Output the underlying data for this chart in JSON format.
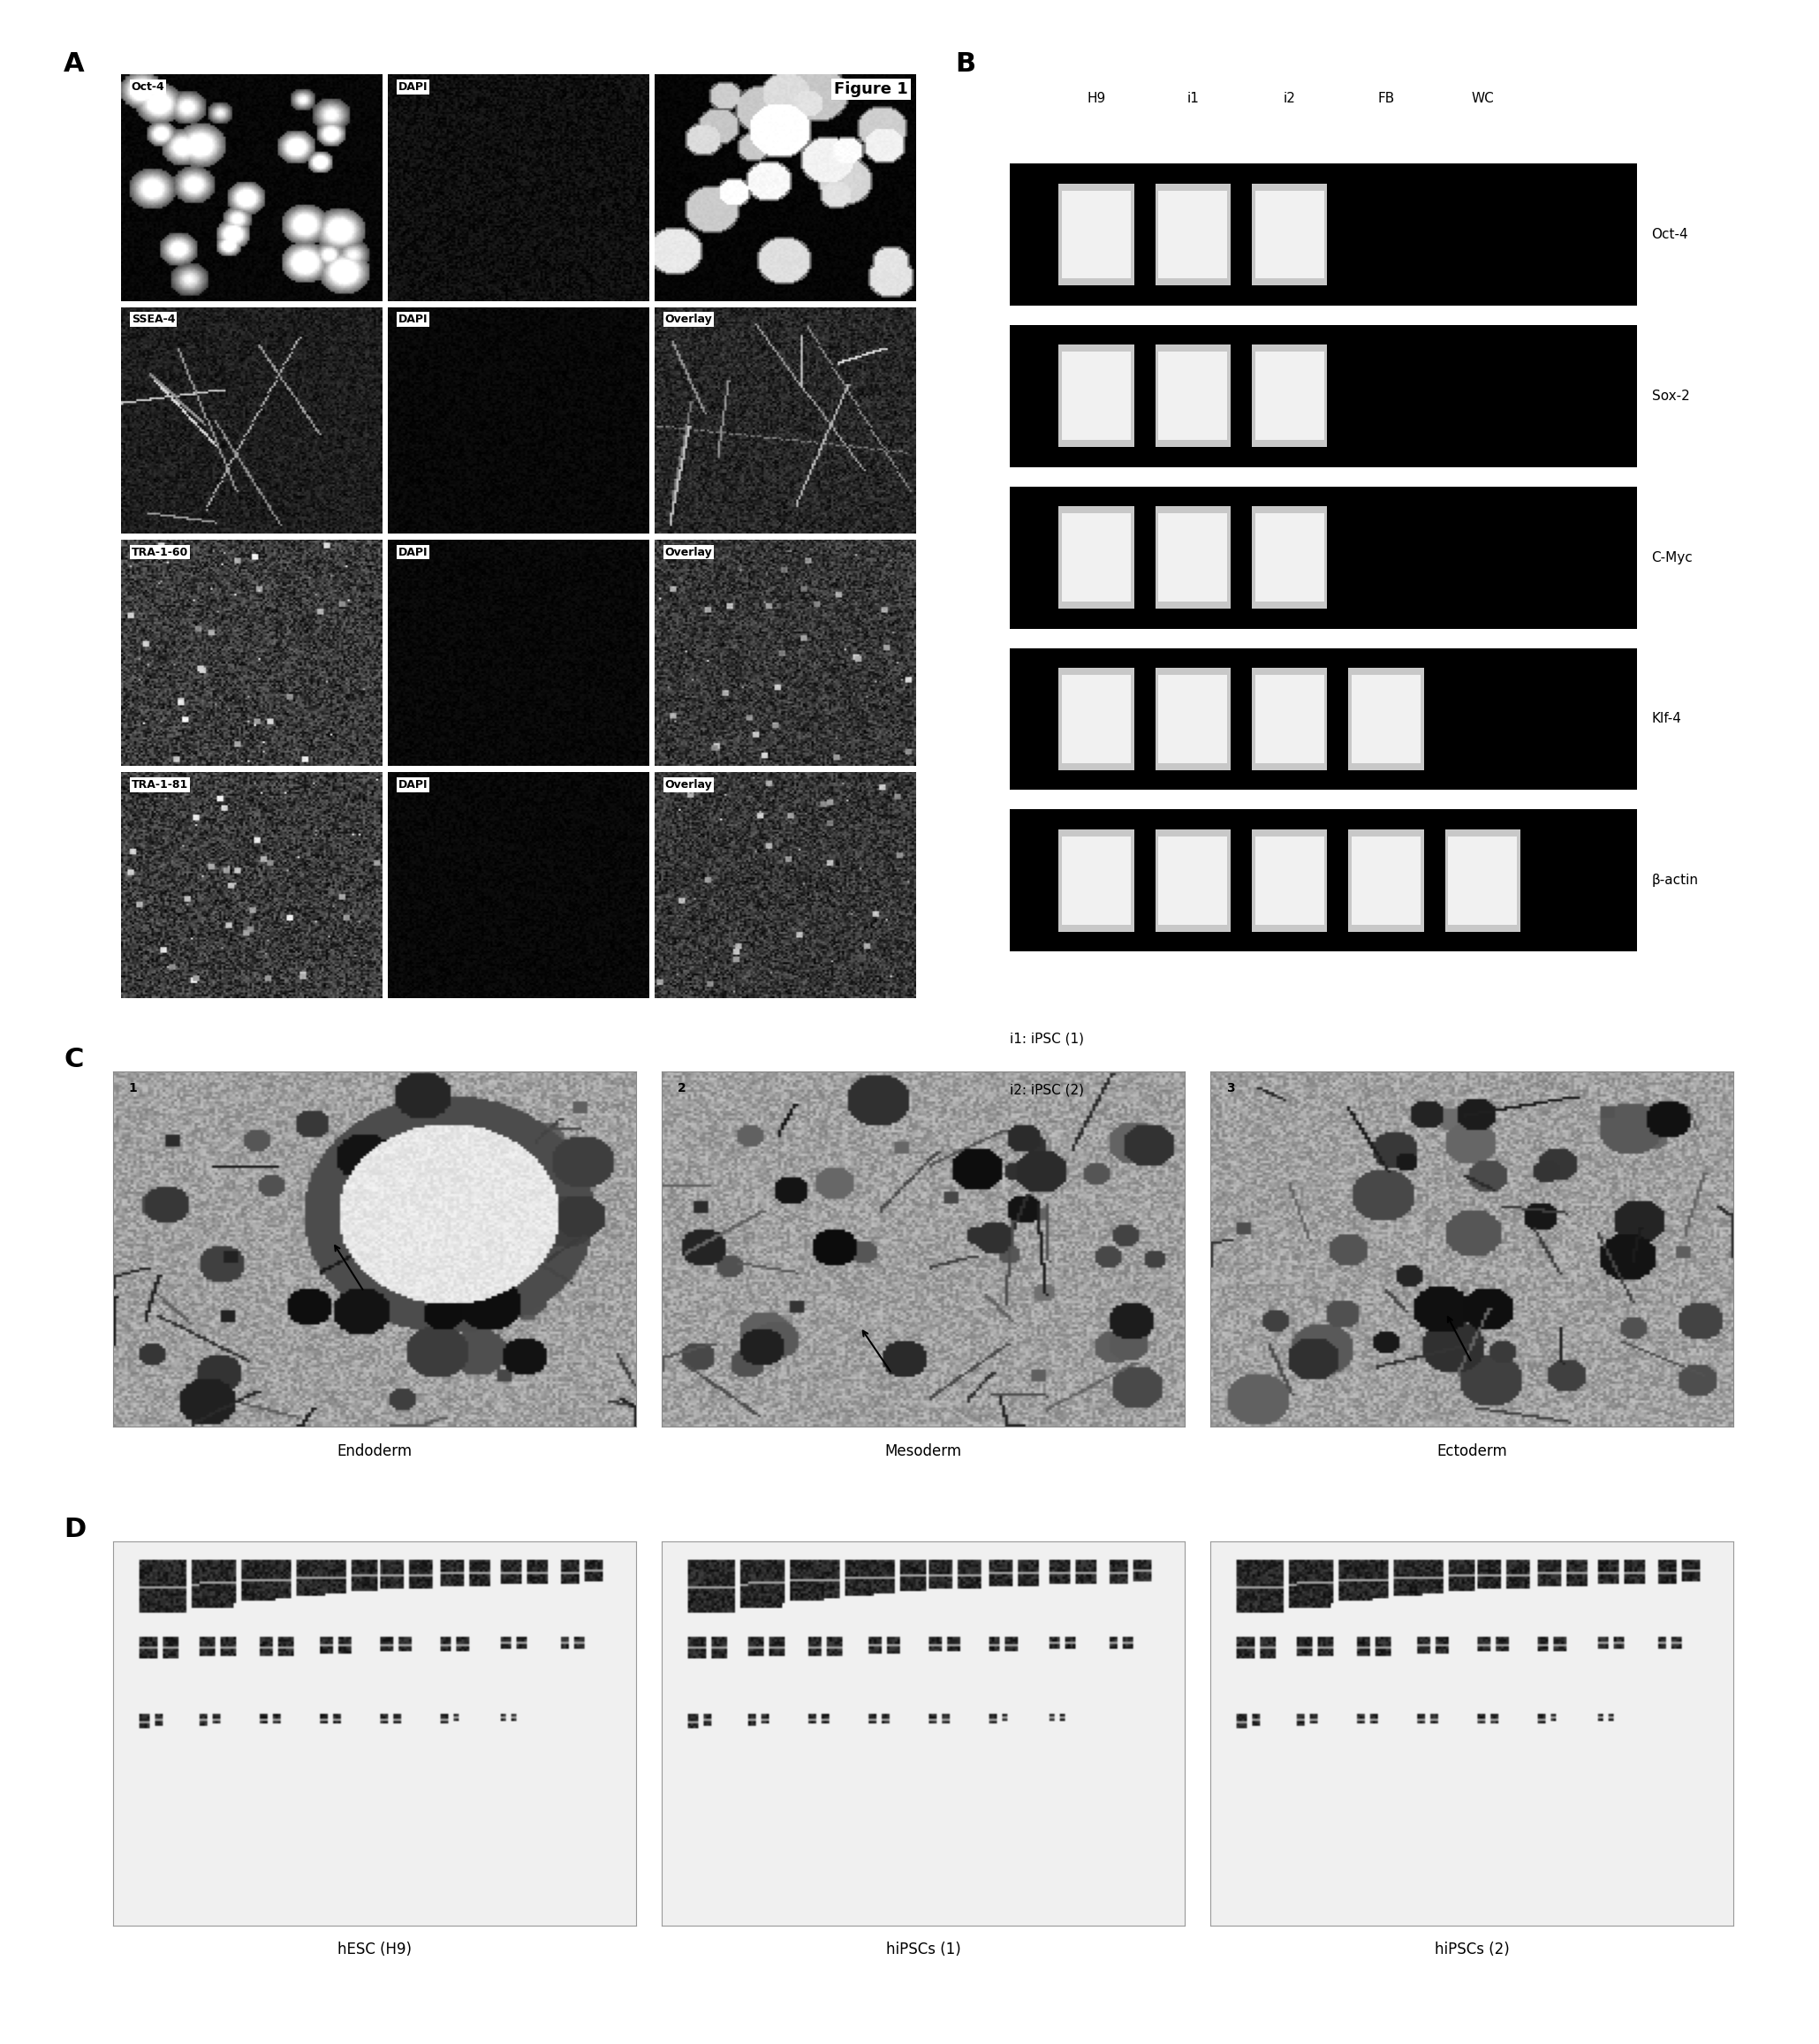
{
  "panel_labels": [
    "A",
    "B",
    "C",
    "D"
  ],
  "panel_A_labels": [
    [
      "Oct-4",
      "DAPI",
      "Figure 1"
    ],
    [
      "SSEA-4",
      "DAPI",
      "Overlay"
    ],
    [
      "TRA-1-60",
      "DAPI",
      "Overlay"
    ],
    [
      "TRA-1-81",
      "DAPI",
      "Overlay"
    ]
  ],
  "panel_B_columns": [
    "H9",
    "i1",
    "i2",
    "FB",
    "WC"
  ],
  "panel_B_rows": [
    "Oct-4",
    "Sox-2",
    "C-Myc",
    "Klf-4",
    "β-actin"
  ],
  "panel_B_bands": [
    [
      1,
      1,
      1,
      0,
      0
    ],
    [
      1,
      1,
      1,
      0,
      0
    ],
    [
      1,
      1,
      1,
      0,
      0
    ],
    [
      1,
      1,
      1,
      1,
      0
    ],
    [
      1,
      1,
      1,
      1,
      1
    ]
  ],
  "panel_B_note": [
    "i1: iPSC (1)",
    "i2: iPSC (2)"
  ],
  "panel_C_labels": [
    "Endoderm",
    "Mesoderm",
    "Ectoderm"
  ],
  "panel_C_numbers": [
    "1",
    "2",
    "3"
  ],
  "panel_D_labels": [
    "hESC (H9)",
    "hiPSCs (1)",
    "hiPSCs (2)"
  ],
  "bg_color": "#ffffff",
  "panel_label_fontsize": 22,
  "sublabel_fontsize": 11,
  "axis_label_fontsize": 12,
  "note_fontsize": 11
}
